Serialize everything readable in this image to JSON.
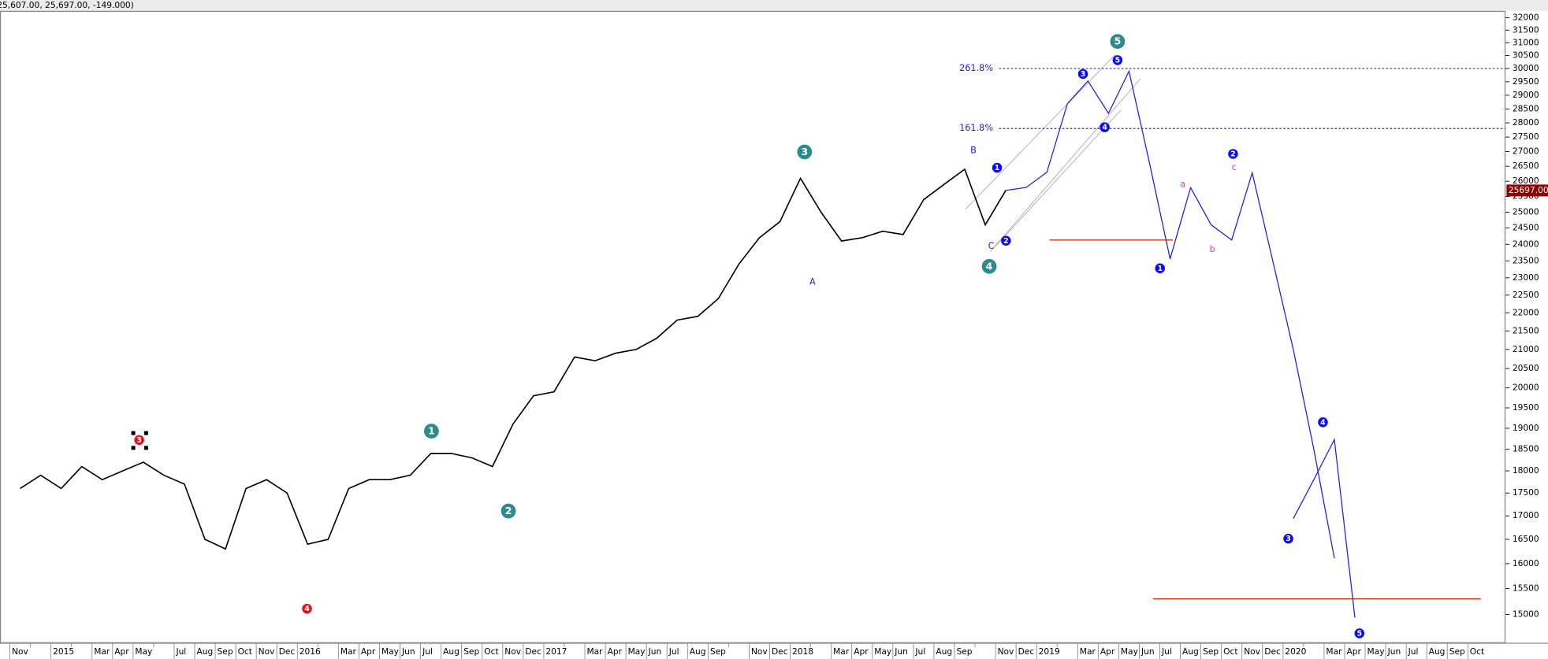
{
  "header": {
    "text": "25,607.00, 25,697.00, -149.000)"
  },
  "chart_data": {
    "type": "line",
    "categories": [
      "Nov",
      null,
      "2015",
      null,
      "Mar",
      "Apr",
      "May",
      null,
      "Jul",
      "Aug",
      "Sep",
      "Oct",
      "Nov",
      "Dec",
      "2016",
      null,
      "Mar",
      "Apr",
      "May",
      "Jun",
      "Jul",
      "Aug",
      "Sep",
      "Oct",
      "Nov",
      "Dec",
      "2017",
      null,
      "Mar",
      "Apr",
      "May",
      "Jun",
      "Jul",
      "Aug",
      "Sep",
      null,
      "Nov",
      "Dec",
      "2018",
      null,
      "Mar",
      "Apr",
      "May",
      "Jun",
      "Jul",
      "Aug",
      "Sep",
      null,
      "Nov",
      "Dec",
      "2019",
      null,
      "Mar",
      "Apr",
      "May",
      "Jun",
      "Jul",
      "Aug",
      "Sep",
      "Oct",
      "Nov",
      "Dec",
      "2020",
      null,
      "Mar",
      "Apr",
      "May",
      "Jun",
      "Jul",
      "Aug",
      "Sep",
      "Oct"
    ],
    "series": [
      {
        "color": "#000000",
        "values": [
          17600,
          17900,
          17600,
          18100,
          17800,
          18000,
          18200,
          17900,
          17700,
          16500,
          16300,
          17600,
          17800,
          17500,
          16400,
          16500,
          17600,
          17800,
          17800,
          17900,
          18400,
          18400,
          18300,
          18100,
          19100,
          19800,
          19900,
          20800,
          20700,
          20900,
          21000,
          21300,
          21800,
          21900,
          22400,
          23400,
          24200,
          24700,
          26100,
          25000,
          24100,
          24200,
          24400,
          24300,
          25400,
          25900,
          26400,
          24600,
          25700,
          null,
          null,
          null,
          null,
          null,
          null,
          null,
          null,
          null,
          null,
          null,
          null,
          null,
          null,
          null,
          null,
          null,
          null,
          null,
          null,
          null,
          null,
          null
        ]
      },
      {
        "color": "#1a1aff",
        "values": [
          null,
          null,
          null,
          null,
          null,
          null,
          null,
          null,
          null,
          null,
          null,
          null,
          null,
          null,
          null,
          null,
          null,
          null,
          null,
          null,
          null,
          null,
          null,
          null,
          null,
          null,
          null,
          null,
          null,
          null,
          null,
          null,
          null,
          null,
          null,
          null,
          null,
          null,
          null,
          null,
          null,
          null,
          null,
          null,
          null,
          null,
          null,
          null,
          25700,
          25800,
          26300,
          28690,
          29530,
          28340,
          29900,
          26600,
          23560,
          25790,
          24600,
          24130,
          26280,
          23500,
          21000,
          18500,
          16110,
          null,
          null,
          null,
          null,
          null,
          null,
          null
        ]
      },
      {
        "color": "#1a1aff",
        "values": [
          null,
          null,
          null,
          null,
          null,
          null,
          null,
          null,
          null,
          null,
          null,
          null,
          null,
          null,
          null,
          null,
          null,
          null,
          null,
          null,
          null,
          null,
          null,
          null,
          null,
          null,
          null,
          null,
          null,
          null,
          null,
          null,
          null,
          null,
          null,
          null,
          null,
          null,
          null,
          null,
          null,
          null,
          null,
          null,
          null,
          null,
          null,
          null,
          null,
          null,
          null,
          null,
          null,
          null,
          null,
          null,
          null,
          null,
          null,
          null,
          null,
          null,
          16940,
          17800,
          18730,
          14940,
          null,
          null,
          null,
          null,
          null,
          null
        ]
      }
    ],
    "log_scale": true,
    "ylim": [
      14480,
      32240
    ],
    "yticks": [
      15000,
      15500,
      16000,
      16500,
      17000,
      17500,
      18000,
      18500,
      19000,
      19500,
      20000,
      20500,
      21000,
      21500,
      22000,
      22500,
      23000,
      23500,
      24000,
      24500,
      25000,
      25500,
      26000,
      26500,
      27000,
      27500,
      28000,
      28500,
      29000,
      29500,
      30000,
      30500,
      31000,
      31500,
      32000
    ],
    "current_price": {
      "value": 25697,
      "label": "25697.00"
    },
    "fib_levels": [
      {
        "value": 30000,
        "label": "261.8%"
      },
      {
        "value": 27800,
        "label": "161.8%"
      }
    ],
    "support_lines": {
      "color": "#cc2200",
      "values": [
        24130,
        15300
      ]
    },
    "annotations": [
      {
        "text": "3",
        "color": "#e8101c",
        "shape": "circle"
      },
      {
        "text": "4",
        "color": "#e8101c",
        "shape": "circle"
      },
      {
        "text": "1",
        "color": "#2e8b8b",
        "shape": "circle"
      },
      {
        "text": "2",
        "color": "#2e8b8b",
        "shape": "circle"
      },
      {
        "text": "3",
        "color": "#2e8b8b",
        "shape": "circle"
      },
      {
        "text": "4",
        "color": "#2e8b8b",
        "shape": "circle"
      },
      {
        "text": "5",
        "color": "#2e8b8b",
        "shape": "circle"
      },
      {
        "text": "A",
        "color": "#2222dd",
        "shape": "none"
      },
      {
        "text": "B",
        "color": "#2222dd",
        "shape": "none"
      },
      {
        "text": "C",
        "color": "#2222dd",
        "shape": "none"
      },
      {
        "text": "1",
        "color": "#0a0aff",
        "shape": "circle"
      },
      {
        "text": "2",
        "color": "#0a0aff",
        "shape": "circle"
      },
      {
        "text": "3",
        "color": "#0a0aff",
        "shape": "circle"
      },
      {
        "text": "4",
        "color": "#0a0aff",
        "shape": "circle"
      },
      {
        "text": "5",
        "color": "#0a0aff",
        "shape": "circle"
      },
      {
        "text": "1",
        "color": "#0a0aff",
        "shape": "circle"
      },
      {
        "text": "2",
        "color": "#0a0aff",
        "shape": "circle"
      },
      {
        "text": "3",
        "color": "#0a0aff",
        "shape": "circle"
      },
      {
        "text": "4",
        "color": "#0a0aff",
        "shape": "circle"
      },
      {
        "text": "5",
        "color": "#0a0aff",
        "shape": "circle"
      },
      {
        "text": "a",
        "color": "#ff33cc",
        "shape": "none"
      },
      {
        "text": "b",
        "color": "#ff33cc",
        "shape": "none"
      },
      {
        "text": "c",
        "color": "#ff33cc",
        "shape": "none"
      }
    ]
  }
}
